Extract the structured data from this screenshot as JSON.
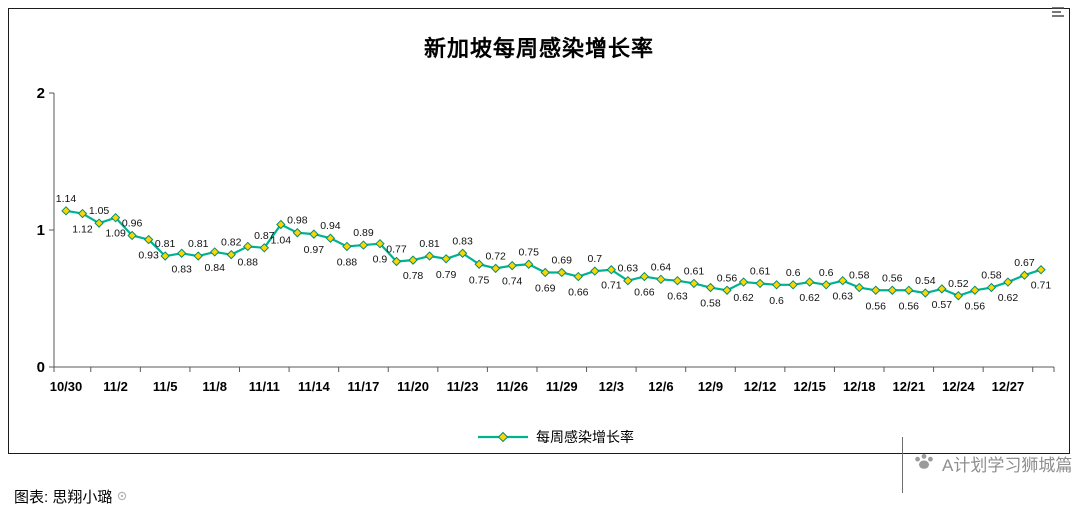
{
  "header": {
    "title": "新加坡每周感染增长率"
  },
  "footer": {
    "source": "图表: 思翔小璐",
    "watermark": "A计划学习狮城篇"
  },
  "chart_data": {
    "type": "line",
    "title": "新加坡每周感染增长率",
    "xlabel": "",
    "ylabel": "",
    "legend": [
      "每周感染增长率"
    ],
    "legend_position": "bottom",
    "grid": false,
    "ylim": [
      0,
      2
    ],
    "y_ticks": [
      0,
      1,
      2
    ],
    "points_per_tick": 3,
    "x_tick_labels": [
      "10/30",
      "11/2",
      "11/5",
      "11/8",
      "11/11",
      "11/14",
      "11/17",
      "11/20",
      "11/23",
      "11/26",
      "11/29",
      "12/3",
      "12/6",
      "12/9",
      "12/12",
      "12/15",
      "12/18",
      "12/21",
      "12/24",
      "12/27"
    ],
    "values": [
      1.14,
      1.12,
      1.05,
      1.09,
      0.96,
      0.93,
      0.81,
      0.83,
      0.81,
      0.84,
      0.82,
      0.88,
      0.87,
      1.04,
      0.98,
      0.97,
      0.94,
      0.88,
      0.89,
      0.9,
      0.77,
      0.78,
      0.81,
      0.79,
      0.83,
      0.75,
      0.72,
      0.74,
      0.75,
      0.69,
      0.69,
      0.66,
      0.7,
      0.71,
      0.63,
      0.66,
      0.64,
      0.63,
      0.61,
      0.58,
      0.56,
      0.62,
      0.61,
      0.6,
      0.6,
      0.62,
      0.6,
      0.63,
      0.58,
      0.56,
      0.56,
      0.56,
      0.54,
      0.57,
      0.52,
      0.56,
      0.58,
      0.62,
      0.67,
      0.71
    ],
    "line_color": "#00b294",
    "marker_fill": "#ffd400",
    "marker_stroke": "#008f72",
    "axis_color": "#595959"
  }
}
